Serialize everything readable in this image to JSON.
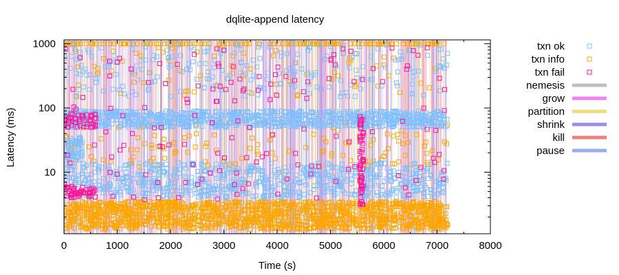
{
  "chart_data": {
    "type": "scatter",
    "title": "dqlite-append latency",
    "xlabel": "Time (s)",
    "ylabel": "Latency (ms)",
    "xlim": [
      0,
      8000
    ],
    "ylim": [
      1.1,
      1150
    ],
    "yscale": "log",
    "x_ticks": [
      0,
      1000,
      2000,
      3000,
      4000,
      5000,
      6000,
      7000,
      8000
    ],
    "y_ticks": [
      10,
      100,
      1000
    ],
    "x_tick_labels": [
      "0",
      "1000",
      "2000",
      "3000",
      "4000",
      "5000",
      "6000",
      "7000",
      "8000"
    ],
    "y_tick_labels": [
      "10",
      "100",
      "1000"
    ],
    "grid": false,
    "legend_position": "right",
    "data_x_max": 7200,
    "series": [
      {
        "name": "txn ok",
        "marker": "square",
        "color": "#7fbfff",
        "bands": [
          {
            "x": [
              0,
              7200
            ],
            "y": [
              50,
              90
            ]
          },
          {
            "x": [
              0,
              7200
            ],
            "y": [
              4,
              14
            ]
          },
          {
            "x": [
              0,
              350
            ],
            "y": [
              15,
              35
            ]
          },
          {
            "x": [
              0,
              7200
            ],
            "y": [
              150,
              1000
            ]
          }
        ]
      },
      {
        "name": "txn info",
        "marker": "square",
        "color": "#ffa500",
        "bands": [
          {
            "x": [
              0,
              7200
            ],
            "y": [
              1.3,
              3.5
            ]
          },
          {
            "x": [
              0,
              7200
            ],
            "y": [
              1000,
              1000
            ]
          },
          {
            "x": [
              0,
              7200
            ],
            "y": [
              12,
              60
            ]
          }
        ]
      },
      {
        "name": "txn fail",
        "marker": "square",
        "color": "#ff1493",
        "clusters": [
          {
            "x": [
              0,
              600
            ],
            "y": [
              50,
              80
            ]
          },
          {
            "x": [
              0,
              600
            ],
            "y": [
              4,
              6
            ]
          },
          {
            "x": [
              5550,
              5620
            ],
            "y": [
              3,
              80
            ]
          },
          {
            "x": [
              0,
              7200
            ],
            "y": [
              3.5,
              900
            ]
          }
        ]
      }
    ],
    "periods": [
      {
        "name": "nemesis",
        "color": "#c0c0c0"
      },
      {
        "name": "grow",
        "color": "#ee82ee"
      },
      {
        "name": "partition",
        "color": "#eedd82"
      },
      {
        "name": "shrink",
        "color": "#9b8ee8"
      },
      {
        "name": "kill",
        "color": "#f08080"
      },
      {
        "name": "pause",
        "color": "#99aaee"
      }
    ]
  }
}
